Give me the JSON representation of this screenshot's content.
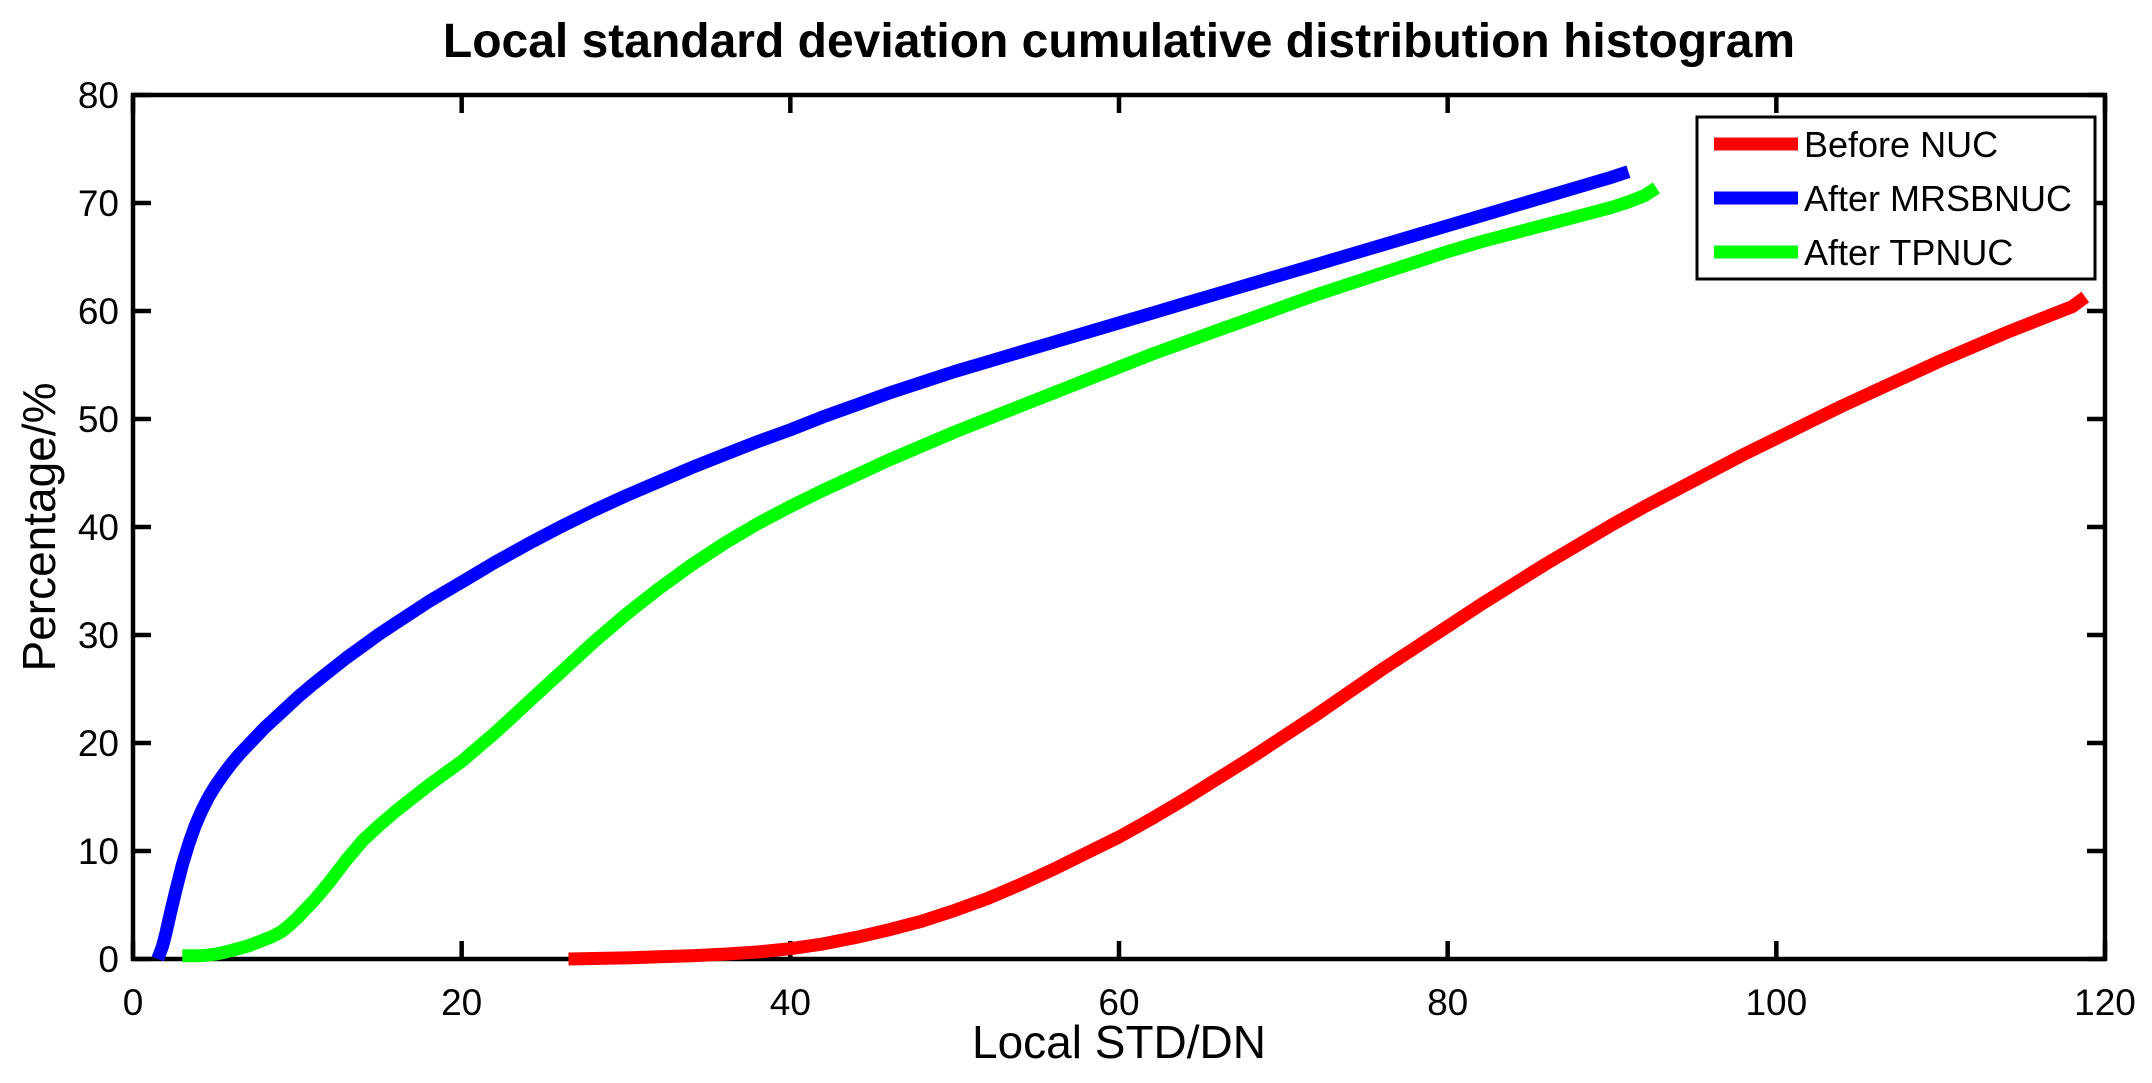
{
  "figure": {
    "background_color": "#ffffff",
    "axis_color": "#000000",
    "accent_colors": {
      "red": "#ff0000",
      "blue": "#0000ff",
      "green": "#00ff00"
    }
  },
  "chart_data": {
    "type": "line",
    "title": "Local standard deviation cumulative distribution histogram",
    "xlabel": "Local STD/DN",
    "ylabel": "Percentage/%",
    "xlim": [
      0,
      120
    ],
    "ylim": [
      0,
      80
    ],
    "xticks": [
      0,
      20,
      40,
      60,
      80,
      100,
      120
    ],
    "yticks": [
      0,
      10,
      20,
      30,
      40,
      50,
      60,
      70,
      80
    ],
    "grid": false,
    "legend": {
      "position": "top-right",
      "entries": [
        "Before NUC",
        "After MRSBNUC",
        "After TPNUC"
      ]
    },
    "series": [
      {
        "name": "Before NUC",
        "color": "#ff0000",
        "points": [
          [
            26.5,
            0
          ],
          [
            28,
            0.05
          ],
          [
            30,
            0.1
          ],
          [
            32,
            0.2
          ],
          [
            34,
            0.3
          ],
          [
            36,
            0.45
          ],
          [
            38,
            0.65
          ],
          [
            40,
            0.95
          ],
          [
            42,
            1.4
          ],
          [
            44,
            2
          ],
          [
            46,
            2.7
          ],
          [
            48,
            3.5
          ],
          [
            50,
            4.5
          ],
          [
            52,
            5.6
          ],
          [
            54,
            6.9
          ],
          [
            56,
            8.3
          ],
          [
            58,
            9.8
          ],
          [
            60,
            11.3
          ],
          [
            62,
            13
          ],
          [
            64,
            14.8
          ],
          [
            66,
            16.7
          ],
          [
            68,
            18.6
          ],
          [
            70,
            20.6
          ],
          [
            72,
            22.6
          ],
          [
            74,
            24.7
          ],
          [
            76,
            26.8
          ],
          [
            78,
            28.8
          ],
          [
            80,
            30.8
          ],
          [
            82,
            32.8
          ],
          [
            84,
            34.7
          ],
          [
            86,
            36.6
          ],
          [
            88,
            38.4
          ],
          [
            90,
            40.2
          ],
          [
            92,
            41.9
          ],
          [
            94,
            43.5
          ],
          [
            96,
            45.1
          ],
          [
            98,
            46.7
          ],
          [
            100,
            48.2
          ],
          [
            102,
            49.7
          ],
          [
            104,
            51.2
          ],
          [
            106,
            52.6
          ],
          [
            108,
            54
          ],
          [
            110,
            55.4
          ],
          [
            112,
            56.7
          ],
          [
            114,
            58
          ],
          [
            116,
            59.2
          ],
          [
            118,
            60.4
          ],
          [
            118.8,
            61.3
          ]
        ]
      },
      {
        "name": "After MRSBNUC",
        "color": "#0000ff",
        "points": [
          [
            1.5,
            0
          ],
          [
            1.8,
            1.2
          ],
          [
            2,
            2.4
          ],
          [
            2.3,
            4.4
          ],
          [
            2.6,
            6.3
          ],
          [
            3,
            8.7
          ],
          [
            3.4,
            10.7
          ],
          [
            3.8,
            12.4
          ],
          [
            4.2,
            13.8
          ],
          [
            4.6,
            15
          ],
          [
            5,
            16
          ],
          [
            5.5,
            17.1
          ],
          [
            6,
            18.1
          ],
          [
            6.5,
            19
          ],
          [
            7,
            19.8
          ],
          [
            8,
            21.4
          ],
          [
            9,
            22.8
          ],
          [
            10,
            24.2
          ],
          [
            11,
            25.5
          ],
          [
            12,
            26.7
          ],
          [
            13,
            27.9
          ],
          [
            14,
            29
          ],
          [
            15,
            30.1
          ],
          [
            16,
            31.1
          ],
          [
            17,
            32.1
          ],
          [
            18,
            33.1
          ],
          [
            19,
            34
          ],
          [
            20,
            34.9
          ],
          [
            22,
            36.7
          ],
          [
            24,
            38.4
          ],
          [
            26,
            40
          ],
          [
            28,
            41.5
          ],
          [
            30,
            42.9
          ],
          [
            32,
            44.2
          ],
          [
            34,
            45.5
          ],
          [
            36,
            46.7
          ],
          [
            38,
            47.9
          ],
          [
            40,
            49
          ],
          [
            42,
            50.2
          ],
          [
            44,
            51.3
          ],
          [
            46,
            52.4
          ],
          [
            48,
            53.4
          ],
          [
            50,
            54.4
          ],
          [
            52,
            55.3
          ],
          [
            54,
            56.2
          ],
          [
            56,
            57.1
          ],
          [
            58,
            58
          ],
          [
            60,
            58.9
          ],
          [
            62,
            59.8
          ],
          [
            64,
            60.7
          ],
          [
            66,
            61.6
          ],
          [
            68,
            62.5
          ],
          [
            70,
            63.4
          ],
          [
            72,
            64.3
          ],
          [
            74,
            65.2
          ],
          [
            76,
            66.1
          ],
          [
            78,
            67
          ],
          [
            80,
            67.9
          ],
          [
            82,
            68.8
          ],
          [
            84,
            69.7
          ],
          [
            86,
            70.6
          ],
          [
            88,
            71.5
          ],
          [
            90,
            72.4
          ],
          [
            91,
            72.9
          ]
        ]
      },
      {
        "name": "After TPNUC",
        "color": "#00ff00",
        "points": [
          [
            3,
            0.3
          ],
          [
            3.5,
            0.3
          ],
          [
            4,
            0.3
          ],
          [
            4.5,
            0.35
          ],
          [
            5,
            0.45
          ],
          [
            5.5,
            0.6
          ],
          [
            6,
            0.8
          ],
          [
            6.5,
            1
          ],
          [
            7,
            1.2
          ],
          [
            7.5,
            1.5
          ],
          [
            8,
            1.8
          ],
          [
            8.5,
            2.1
          ],
          [
            9,
            2.5
          ],
          [
            9.5,
            3.1
          ],
          [
            10,
            3.8
          ],
          [
            10.5,
            4.6
          ],
          [
            11,
            5.4
          ],
          [
            11.5,
            6.3
          ],
          [
            12,
            7.2
          ],
          [
            12.5,
            8.2
          ],
          [
            13,
            9.2
          ],
          [
            13.5,
            10.1
          ],
          [
            14,
            11
          ],
          [
            14.5,
            11.7
          ],
          [
            15,
            12.4
          ],
          [
            16,
            13.7
          ],
          [
            17,
            14.9
          ],
          [
            18,
            16.1
          ],
          [
            19,
            17.2
          ],
          [
            20,
            18.3
          ],
          [
            21,
            19.6
          ],
          [
            22,
            20.9
          ],
          [
            23,
            22.3
          ],
          [
            24,
            23.7
          ],
          [
            25,
            25.1
          ],
          [
            26,
            26.5
          ],
          [
            27,
            27.9
          ],
          [
            28,
            29.3
          ],
          [
            29,
            30.6
          ],
          [
            30,
            31.9
          ],
          [
            31,
            33.1
          ],
          [
            32,
            34.3
          ],
          [
            33,
            35.4
          ],
          [
            34,
            36.5
          ],
          [
            35,
            37.5
          ],
          [
            36,
            38.5
          ],
          [
            37,
            39.4
          ],
          [
            38,
            40.3
          ],
          [
            39,
            41.1
          ],
          [
            40,
            41.9
          ],
          [
            42,
            43.4
          ],
          [
            44,
            44.8
          ],
          [
            46,
            46.2
          ],
          [
            48,
            47.5
          ],
          [
            50,
            48.8
          ],
          [
            52,
            50
          ],
          [
            54,
            51.2
          ],
          [
            56,
            52.4
          ],
          [
            58,
            53.6
          ],
          [
            60,
            54.8
          ],
          [
            62,
            56
          ],
          [
            64,
            57.1
          ],
          [
            66,
            58.2
          ],
          [
            68,
            59.3
          ],
          [
            70,
            60.4
          ],
          [
            72,
            61.5
          ],
          [
            74,
            62.5
          ],
          [
            76,
            63.5
          ],
          [
            78,
            64.5
          ],
          [
            80,
            65.5
          ],
          [
            82,
            66.4
          ],
          [
            84,
            67.2
          ],
          [
            86,
            68
          ],
          [
            88,
            68.8
          ],
          [
            90,
            69.6
          ],
          [
            91,
            70.1
          ],
          [
            92,
            70.7
          ],
          [
            92.7,
            71.4
          ]
        ]
      }
    ]
  }
}
